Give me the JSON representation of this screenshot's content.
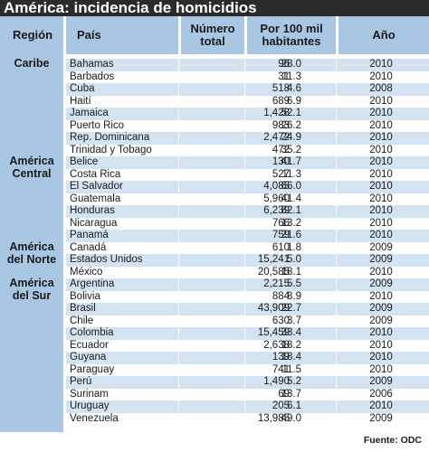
{
  "chart_data": {
    "type": "table",
    "title": "América: incidencia de homicidios",
    "columns": [
      "Región",
      "País",
      "Número total",
      "Por 100 mil habitantes",
      "Año"
    ],
    "column_lines": {
      "total": [
        "Número",
        "total"
      ],
      "rate": [
        "Por 100 mil",
        "habitantes"
      ]
    },
    "regions": [
      {
        "lines": [
          "Caribe"
        ],
        "first_row": 0
      },
      {
        "lines": [
          "América",
          "Central"
        ],
        "first_row": 8
      },
      {
        "lines": [
          "América",
          "del Norte"
        ],
        "first_row": 15
      },
      {
        "lines": [
          "América",
          "del Sur"
        ],
        "first_row": 18
      }
    ],
    "rows": [
      {
        "country": "Bahamas",
        "total": "96",
        "rate": "28.0",
        "year": "2010"
      },
      {
        "country": "Barbados",
        "total": "31",
        "rate": "11.3",
        "year": "2010"
      },
      {
        "country": "Cuba",
        "total": "518",
        "rate": "4.6",
        "year": "2008"
      },
      {
        "country": "Haití",
        "total": "689",
        "rate": "6.9",
        "year": "2010"
      },
      {
        "country": "Jamaica",
        "total": "1,428",
        "rate": "52.1",
        "year": "2010"
      },
      {
        "country": "Puerto Rico",
        "total": "983",
        "rate": "26.2",
        "year": "2010"
      },
      {
        "country": "Rep. Dominicana",
        "total": "2,472",
        "rate": "24.9",
        "year": "2010"
      },
      {
        "country": "Trinidad y Tobago",
        "total": "472",
        "rate": "35.2",
        "year": "2010"
      },
      {
        "country": "Belice",
        "total": "130",
        "rate": "41.7",
        "year": "2010"
      },
      {
        "country": "Costa Rica",
        "total": "527",
        "rate": "11.3",
        "year": "2010"
      },
      {
        "country": "El Salvador",
        "total": "4,085",
        "rate": "66.0",
        "year": "2010"
      },
      {
        "country": "Guatemala",
        "total": "5,960",
        "rate": "41.4",
        "year": "2010"
      },
      {
        "country": "Honduras",
        "total": "6,239",
        "rate": "82.1",
        "year": "2010"
      },
      {
        "country": "Nicaragua",
        "total": "766",
        "rate": "13.2",
        "year": "2010"
      },
      {
        "country": "Panamá",
        "total": "759",
        "rate": "21.6",
        "year": "2010"
      },
      {
        "country": "Canadá",
        "total": "610",
        "rate": "1.8",
        "year": "2009"
      },
      {
        "country": "Estados Unidos",
        "total": "15,241",
        "rate": "5.0",
        "year": "2009"
      },
      {
        "country": "México",
        "total": "20,585",
        "rate": "18.1",
        "year": "2010"
      },
      {
        "country": "Argentina",
        "total": "2,215",
        "rate": "5.5",
        "year": "2009"
      },
      {
        "country": "Bolivia",
        "total": "884",
        "rate": "8.9",
        "year": "2010"
      },
      {
        "country": "Brasil",
        "total": "43,909",
        "rate": "22.7",
        "year": "2009"
      },
      {
        "country": "Chile",
        "total": "630",
        "rate": "3.7",
        "year": "2009"
      },
      {
        "country": "Colombia",
        "total": "15,459",
        "rate": "33.4",
        "year": "2010"
      },
      {
        "country": "Ecuador",
        "total": "2,638",
        "rate": "18.2",
        "year": "2010"
      },
      {
        "country": "Guyana",
        "total": "139",
        "rate": "18.4",
        "year": "2010"
      },
      {
        "country": "Paraguay",
        "total": "741",
        "rate": "11.5",
        "year": "2010"
      },
      {
        "country": "Perú",
        "total": "1,490",
        "rate": "5.2",
        "year": "2009"
      },
      {
        "country": "Surinam",
        "total": "69",
        "rate": "13.7",
        "year": "2006"
      },
      {
        "country": "Uruguay",
        "total": "205",
        "rate": "6.1",
        "year": "2010"
      },
      {
        "country": "Venezuela",
        "total": "13,985",
        "rate": "49.0",
        "year": "2009"
      }
    ],
    "source": "Fuente: ODC"
  },
  "colors": {
    "title_bg": "#2b2b2b",
    "header_bg": "#a9c7e2",
    "stripe_bg": "#d3e3f1",
    "row_bg": "#ffffff"
  }
}
